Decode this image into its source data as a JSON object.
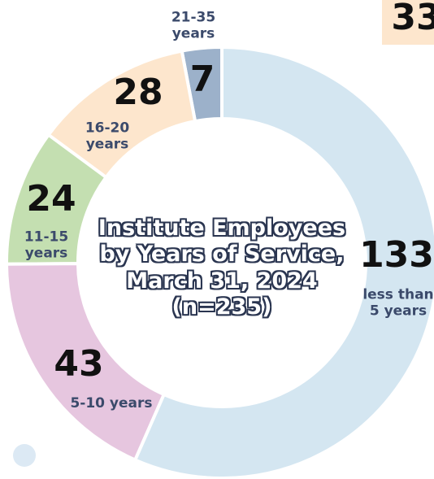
{
  "chart_data": {
    "type": "donut",
    "title": "Institute Employees by Years of Service, March 31, 2024",
    "subtitle": "(n=235)",
    "categories": [
      "less than 5 years",
      "5-10 years",
      "11-15 years",
      "16-20 years",
      "21-35 years"
    ],
    "values": [
      133,
      43,
      24,
      28,
      7
    ],
    "colors": [
      "#d4e6f1",
      "#e6c6df",
      "#c4dfb1",
      "#fde6cd",
      "#9cb1ca"
    ],
    "annotation": "33"
  }
}
